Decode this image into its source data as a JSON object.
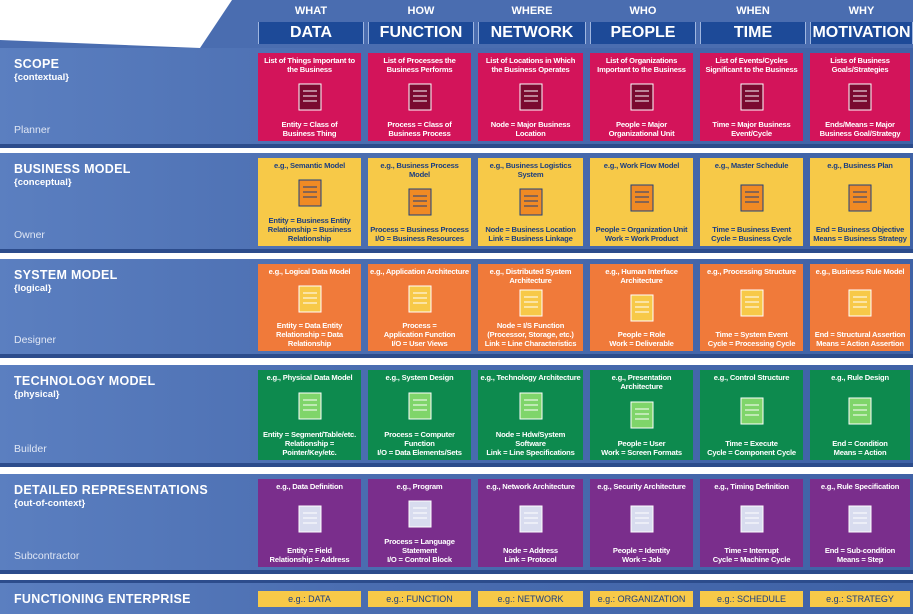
{
  "columns": [
    {
      "question": "WHAT",
      "title": "DATA"
    },
    {
      "question": "HOW",
      "title": "FUNCTION"
    },
    {
      "question": "WHERE",
      "title": "NETWORK"
    },
    {
      "question": "WHO",
      "title": "PEOPLE"
    },
    {
      "question": "WHEN",
      "title": "TIME"
    },
    {
      "question": "WHY",
      "title": "MOTIVATION"
    }
  ],
  "rows": [
    {
      "title": "SCOPE",
      "subtitle": "{contextual}",
      "role": "Planner",
      "cells": [
        {
          "top": "List of Things Important to the Business",
          "bottom": [
            "Entity = Class of",
            "Business Thing"
          ]
        },
        {
          "top": "List of Processes the Business Performs",
          "bottom": [
            "Process = Class of",
            "Business Process"
          ]
        },
        {
          "top": "List of Locations in Which the Business Operates",
          "bottom": [
            "Node = Major Business",
            "Location"
          ]
        },
        {
          "top": "List of Organizations Important to the Business",
          "bottom": [
            "People = Major",
            "Organizational Unit"
          ]
        },
        {
          "top": "List of Events/Cycles Significant to the Business",
          "bottom": [
            "Time = Major Business",
            "Event/Cycle"
          ]
        },
        {
          "top": "Lists of Business Goals/Strategies",
          "bottom": [
            "Ends/Means = Major",
            "Business Goal/Strategy"
          ]
        }
      ]
    },
    {
      "title": "BUSINESS MODEL",
      "subtitle": "{conceptual}",
      "role": "Owner",
      "cells": [
        {
          "top": "e.g., Semantic Model",
          "bottom": [
            "Entity = Business Entity",
            "Relationship = Business Relationship"
          ]
        },
        {
          "top": "e.g., Business Process Model",
          "bottom": [
            "Process = Business Process",
            "I/O = Business Resources"
          ]
        },
        {
          "top": "e.g., Business Logistics System",
          "bottom": [
            "Node = Business Location",
            "Link = Business Linkage"
          ]
        },
        {
          "top": "e.g., Work Flow Model",
          "bottom": [
            "People = Organization Unit",
            "Work = Work Product"
          ]
        },
        {
          "top": "e.g., Master Schedule",
          "bottom": [
            "Time = Business Event",
            "Cycle = Business Cycle"
          ]
        },
        {
          "top": "e.g., Business Plan",
          "bottom": [
            "End = Business Objective",
            "Means = Business Strategy"
          ]
        }
      ]
    },
    {
      "title": "SYSTEM MODEL",
      "subtitle": "{logical}",
      "role": "Designer",
      "cells": [
        {
          "top": "e.g., Logical Data Model",
          "bottom": [
            "Entity = Data Entity",
            "Relationship = Data Relationship"
          ]
        },
        {
          "top": "e.g., Application Architecture",
          "bottom": [
            "Process =",
            "Application Function",
            "I/O = User Views"
          ]
        },
        {
          "top": "e.g., Distributed System Architecture",
          "bottom": [
            "Node = I/S Function",
            "(Processor, Storage, etc.)",
            "Link = Line Characteristics"
          ]
        },
        {
          "top": "e.g., Human Interface Architecture",
          "bottom": [
            "People = Role",
            "Work = Deliverable"
          ]
        },
        {
          "top": "e.g., Processing Structure",
          "bottom": [
            "Time = System Event",
            "Cycle = Processing Cycle"
          ]
        },
        {
          "top": "e.g., Business Rule Model",
          "bottom": [
            "End = Structural Assertion",
            "Means = Action Assertion"
          ]
        }
      ]
    },
    {
      "title": "TECHNOLOGY MODEL",
      "subtitle": "{physical}",
      "role": "Builder",
      "cells": [
        {
          "top": "e.g., Physical Data Model",
          "bottom": [
            "Entity = Segment/Table/etc.",
            "Relationship = Pointer/Key/etc."
          ]
        },
        {
          "top": "e.g., System Design",
          "bottom": [
            "Process = Computer Function",
            "I/O = Data Elements/Sets"
          ]
        },
        {
          "top": "e.g., Technology Architecture",
          "bottom": [
            "Node = Hdw/System Software",
            "Link = Line Specifications"
          ]
        },
        {
          "top": "e.g., Presentation Architecture",
          "bottom": [
            "People = User",
            "Work = Screen Formats"
          ]
        },
        {
          "top": "e.g., Control Structure",
          "bottom": [
            "Time = Execute",
            "Cycle = Component Cycle"
          ]
        },
        {
          "top": "e.g., Rule Design",
          "bottom": [
            "End = Condition",
            "Means = Action"
          ]
        }
      ]
    },
    {
      "title": "DETAILED REPRESENTATIONS",
      "subtitle": "{out-of-context}",
      "role": "Subcontractor",
      "cells": [
        {
          "top": "e.g., Data Definition",
          "bottom": [
            "Entity = Field",
            "Relationship = Address"
          ]
        },
        {
          "top": "e.g., Program",
          "bottom": [
            "Process = Language Statement",
            "I/O = Control Block"
          ]
        },
        {
          "top": "e.g., Network Architecture",
          "bottom": [
            "Node = Address",
            "Link = Protocol"
          ]
        },
        {
          "top": "e.g., Security Architecture",
          "bottom": [
            "People = Identity",
            "Work = Job"
          ]
        },
        {
          "top": "e.g., Timing Definition",
          "bottom": [
            "Time = Interrupt",
            "Cycle = Machine Cycle"
          ]
        },
        {
          "top": "e.g., Rule Specification",
          "bottom": [
            "End = Sub-condition",
            "Means = Step"
          ]
        }
      ]
    }
  ],
  "footer": {
    "title": "FUNCTIONING ENTERPRISE",
    "cells": [
      "e.g.: DATA",
      "e.g.: FUNCTION",
      "e.g.: NETWORK",
      "e.g.: ORGANIZATION",
      "e.g.: SCHEDULE",
      "e.g.: STRATEGY"
    ]
  }
}
